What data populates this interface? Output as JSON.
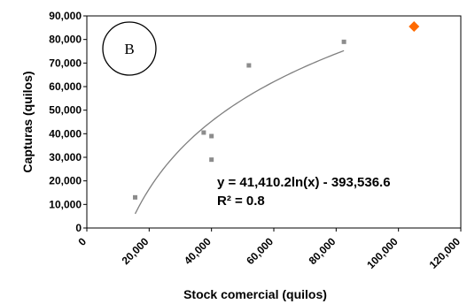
{
  "chart_data": {
    "type": "scatter",
    "xlabel": "Stock comercial (quilos)",
    "ylabel": "Capturas (quilos)",
    "xlim": [
      0,
      120000
    ],
    "ylim": [
      0,
      90000
    ],
    "x_ticks": [
      "0",
      "20,000",
      "40,000",
      "60,000",
      "80,000",
      "100,000",
      "120,000"
    ],
    "y_ticks": [
      "0",
      "10,000",
      "20,000",
      "30,000",
      "40,000",
      "50,000",
      "60,000",
      "70,000",
      "80,000",
      "90,000"
    ],
    "panel_label": "B",
    "series": [
      {
        "marker": "square",
        "color": "#8c8c8c",
        "points": [
          {
            "x": 15500,
            "y": 13000
          },
          {
            "x": 37500,
            "y": 40500
          },
          {
            "x": 40000,
            "y": 39000
          },
          {
            "x": 40000,
            "y": 29000
          },
          {
            "x": 52000,
            "y": 69000
          },
          {
            "x": 82500,
            "y": 79000
          }
        ]
      },
      {
        "marker": "diamond",
        "color": "#ff6a00",
        "points": [
          {
            "x": 105000,
            "y": 85500
          }
        ]
      }
    ],
    "trendline": {
      "type": "logarithmic",
      "a": 41410.2,
      "b": -393536.6,
      "x_range": [
        15500,
        82500
      ],
      "color": "#7f7f7f"
    },
    "annotations": {
      "equation": "y = 41,410.2ln(x) - 393,536.6",
      "r_squared": "R² = 0.8"
    },
    "grid": false,
    "legend": "none"
  }
}
